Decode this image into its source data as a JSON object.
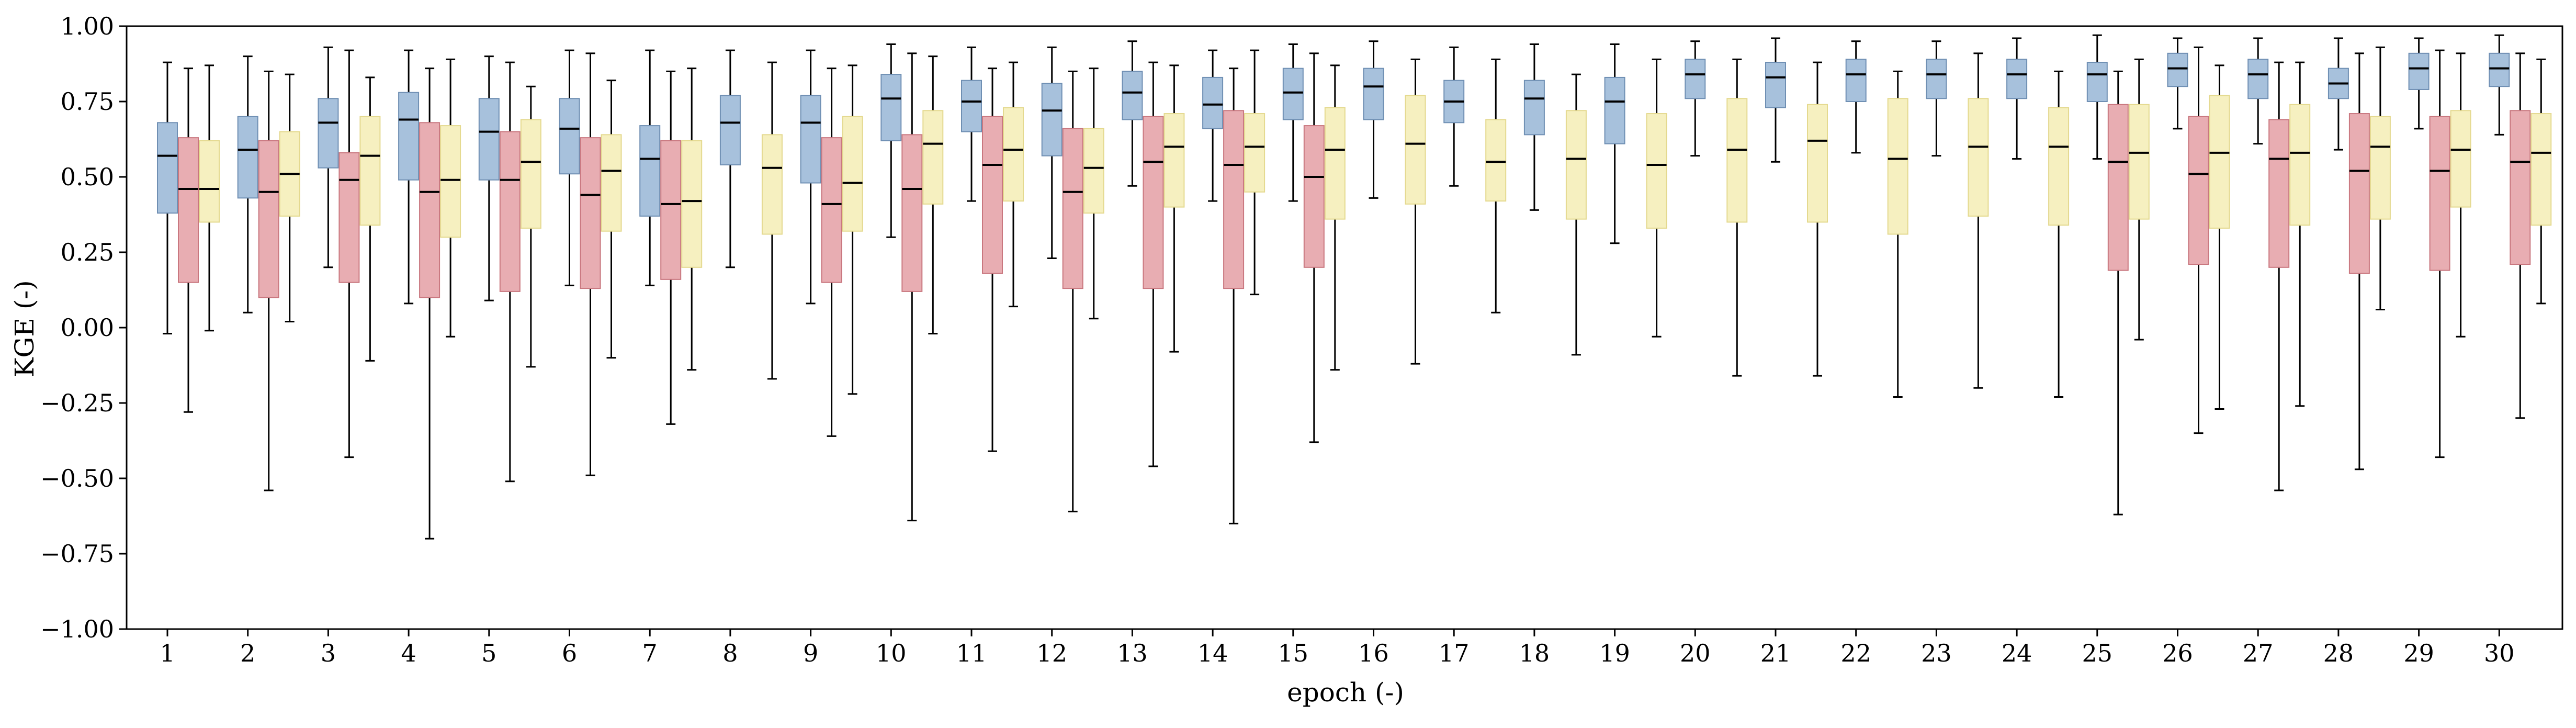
{
  "chart_data": {
    "type": "box",
    "xlabel": "epoch (-)",
    "ylabel": "KGE (-)",
    "ylim": [
      -1.0,
      1.0
    ],
    "yticks": [
      "−1.00",
      "−0.75",
      "−0.50",
      "−0.25",
      "0.00",
      "0.25",
      "0.50",
      "0.75",
      "1.00"
    ],
    "ytick_values": [
      -1.0,
      -0.75,
      -0.5,
      -0.25,
      0.0,
      0.25,
      0.5,
      0.75,
      1.0
    ],
    "categories": [
      "1",
      "2",
      "3",
      "4",
      "5",
      "6",
      "7",
      "8",
      "9",
      "10",
      "11",
      "12",
      "13",
      "14",
      "15",
      "16",
      "17",
      "18",
      "19",
      "20",
      "21",
      "22",
      "23",
      "24",
      "25",
      "26",
      "27",
      "28",
      "29",
      "30"
    ],
    "grid": false,
    "legend": "none",
    "series": [
      {
        "color": "#a7c1dc",
        "stroke": "#6f8fb3",
        "boxes": [
          {
            "epoch": "1",
            "whislo": -0.02,
            "q1": 0.38,
            "med": 0.57,
            "q3": 0.68,
            "whishi": 0.88
          },
          {
            "epoch": "2",
            "whislo": 0.05,
            "q1": 0.43,
            "med": 0.59,
            "q3": 0.7,
            "whishi": 0.9
          },
          {
            "epoch": "3",
            "whislo": 0.2,
            "q1": 0.53,
            "med": 0.68,
            "q3": 0.76,
            "whishi": 0.93
          },
          {
            "epoch": "4",
            "whislo": 0.08,
            "q1": 0.49,
            "med": 0.69,
            "q3": 0.78,
            "whishi": 0.92
          },
          {
            "epoch": "5",
            "whislo": 0.09,
            "q1": 0.49,
            "med": 0.65,
            "q3": 0.76,
            "whishi": 0.9
          },
          {
            "epoch": "6",
            "whislo": 0.14,
            "q1": 0.51,
            "med": 0.66,
            "q3": 0.76,
            "whishi": 0.92
          },
          {
            "epoch": "7",
            "whislo": 0.14,
            "q1": 0.37,
            "med": 0.56,
            "q3": 0.67,
            "whishi": 0.92
          },
          {
            "epoch": "8",
            "whislo": 0.2,
            "q1": 0.54,
            "med": 0.68,
            "q3": 0.77,
            "whishi": 0.92
          },
          {
            "epoch": "9",
            "whislo": 0.08,
            "q1": 0.48,
            "med": 0.68,
            "q3": 0.77,
            "whishi": 0.92
          },
          {
            "epoch": "10",
            "whislo": 0.3,
            "q1": 0.62,
            "med": 0.76,
            "q3": 0.84,
            "whishi": 0.94
          },
          {
            "epoch": "11",
            "whislo": 0.42,
            "q1": 0.65,
            "med": 0.75,
            "q3": 0.82,
            "whishi": 0.93
          },
          {
            "epoch": "12",
            "whislo": 0.23,
            "q1": 0.57,
            "med": 0.72,
            "q3": 0.81,
            "whishi": 0.93
          },
          {
            "epoch": "13",
            "whislo": 0.47,
            "q1": 0.69,
            "med": 0.78,
            "q3": 0.85,
            "whishi": 0.95
          },
          {
            "epoch": "14",
            "whislo": 0.42,
            "q1": 0.66,
            "med": 0.74,
            "q3": 0.83,
            "whishi": 0.92
          },
          {
            "epoch": "15",
            "whislo": 0.42,
            "q1": 0.69,
            "med": 0.78,
            "q3": 0.86,
            "whishi": 0.94
          },
          {
            "epoch": "16",
            "whislo": 0.43,
            "q1": 0.69,
            "med": 0.8,
            "q3": 0.86,
            "whishi": 0.95
          },
          {
            "epoch": "17",
            "whislo": 0.47,
            "q1": 0.68,
            "med": 0.75,
            "q3": 0.82,
            "whishi": 0.93
          },
          {
            "epoch": "18",
            "whislo": 0.39,
            "q1": 0.64,
            "med": 0.76,
            "q3": 0.82,
            "whishi": 0.94
          },
          {
            "epoch": "19",
            "whislo": 0.28,
            "q1": 0.61,
            "med": 0.75,
            "q3": 0.83,
            "whishi": 0.94
          },
          {
            "epoch": "20",
            "whislo": 0.57,
            "q1": 0.76,
            "med": 0.84,
            "q3": 0.89,
            "whishi": 0.95
          },
          {
            "epoch": "21",
            "whislo": 0.55,
            "q1": 0.73,
            "med": 0.83,
            "q3": 0.88,
            "whishi": 0.96
          },
          {
            "epoch": "22",
            "whislo": 0.58,
            "q1": 0.75,
            "med": 0.84,
            "q3": 0.89,
            "whishi": 0.95
          },
          {
            "epoch": "23",
            "whislo": 0.57,
            "q1": 0.76,
            "med": 0.84,
            "q3": 0.89,
            "whishi": 0.95
          },
          {
            "epoch": "24",
            "whislo": 0.56,
            "q1": 0.76,
            "med": 0.84,
            "q3": 0.89,
            "whishi": 0.96
          },
          {
            "epoch": "25",
            "whislo": 0.56,
            "q1": 0.75,
            "med": 0.84,
            "q3": 0.88,
            "whishi": 0.97
          },
          {
            "epoch": "26",
            "whislo": 0.66,
            "q1": 0.8,
            "med": 0.86,
            "q3": 0.91,
            "whishi": 0.96
          },
          {
            "epoch": "27",
            "whislo": 0.61,
            "q1": 0.76,
            "med": 0.84,
            "q3": 0.89,
            "whishi": 0.96
          },
          {
            "epoch": "28",
            "whislo": 0.59,
            "q1": 0.76,
            "med": 0.81,
            "q3": 0.86,
            "whishi": 0.96
          },
          {
            "epoch": "29",
            "whislo": 0.66,
            "q1": 0.79,
            "med": 0.86,
            "q3": 0.91,
            "whishi": 0.96
          },
          {
            "epoch": "30",
            "whislo": 0.64,
            "q1": 0.8,
            "med": 0.86,
            "q3": 0.91,
            "whishi": 0.97
          }
        ]
      },
      {
        "color": "#e8adb2",
        "stroke": "#c9777f",
        "boxes": [
          {
            "epoch": "1",
            "whislo": -0.28,
            "q1": 0.15,
            "med": 0.46,
            "q3": 0.63,
            "whishi": 0.86
          },
          {
            "epoch": "2",
            "whislo": -0.54,
            "q1": 0.1,
            "med": 0.45,
            "q3": 0.62,
            "whishi": 0.85
          },
          {
            "epoch": "3",
            "whislo": -0.43,
            "q1": 0.15,
            "med": 0.49,
            "q3": 0.58,
            "whishi": 0.92
          },
          {
            "epoch": "4",
            "whislo": -0.7,
            "q1": 0.1,
            "med": 0.45,
            "q3": 0.68,
            "whishi": 0.86
          },
          {
            "epoch": "5",
            "whislo": -0.51,
            "q1": 0.12,
            "med": 0.49,
            "q3": 0.65,
            "whishi": 0.88
          },
          {
            "epoch": "6",
            "whislo": -0.49,
            "q1": 0.13,
            "med": 0.44,
            "q3": 0.63,
            "whishi": 0.91
          },
          {
            "epoch": "7",
            "whislo": -0.32,
            "q1": 0.16,
            "med": 0.41,
            "q3": 0.62,
            "whishi": 0.85
          },
          {
            "epoch": "9",
            "whislo": -0.36,
            "q1": 0.15,
            "med": 0.41,
            "q3": 0.63,
            "whishi": 0.86
          },
          {
            "epoch": "10",
            "whislo": -0.64,
            "q1": 0.12,
            "med": 0.46,
            "q3": 0.64,
            "whishi": 0.91
          },
          {
            "epoch": "11",
            "whislo": -0.41,
            "q1": 0.18,
            "med": 0.54,
            "q3": 0.7,
            "whishi": 0.86
          },
          {
            "epoch": "12",
            "whislo": -0.61,
            "q1": 0.13,
            "med": 0.45,
            "q3": 0.66,
            "whishi": 0.85
          },
          {
            "epoch": "13",
            "whislo": -0.46,
            "q1": 0.13,
            "med": 0.55,
            "q3": 0.7,
            "whishi": 0.88
          },
          {
            "epoch": "14",
            "whislo": -0.65,
            "q1": 0.13,
            "med": 0.54,
            "q3": 0.72,
            "whishi": 0.86
          },
          {
            "epoch": "15",
            "whislo": -0.38,
            "q1": 0.2,
            "med": 0.5,
            "q3": 0.67,
            "whishi": 0.91
          },
          {
            "epoch": "25",
            "whislo": -0.62,
            "q1": 0.19,
            "med": 0.55,
            "q3": 0.74,
            "whishi": 0.85
          },
          {
            "epoch": "26",
            "whislo": -0.35,
            "q1": 0.21,
            "med": 0.51,
            "q3": 0.7,
            "whishi": 0.93
          },
          {
            "epoch": "27",
            "whislo": -0.54,
            "q1": 0.2,
            "med": 0.56,
            "q3": 0.69,
            "whishi": 0.88
          },
          {
            "epoch": "28",
            "whislo": -0.47,
            "q1": 0.18,
            "med": 0.52,
            "q3": 0.71,
            "whishi": 0.91
          },
          {
            "epoch": "29",
            "whislo": -0.43,
            "q1": 0.19,
            "med": 0.52,
            "q3": 0.7,
            "whishi": 0.92
          },
          {
            "epoch": "30",
            "whislo": -0.3,
            "q1": 0.21,
            "med": 0.55,
            "q3": 0.72,
            "whishi": 0.91
          }
        ]
      },
      {
        "color": "#f6f0c0",
        "stroke": "#e4d98f",
        "boxes": [
          {
            "epoch": "1",
            "whislo": -0.01,
            "q1": 0.35,
            "med": 0.46,
            "q3": 0.62,
            "whishi": 0.87
          },
          {
            "epoch": "2",
            "whislo": 0.02,
            "q1": 0.37,
            "med": 0.51,
            "q3": 0.65,
            "whishi": 0.84
          },
          {
            "epoch": "3",
            "whislo": -0.11,
            "q1": 0.34,
            "med": 0.57,
            "q3": 0.7,
            "whishi": 0.83
          },
          {
            "epoch": "4",
            "whislo": -0.03,
            "q1": 0.3,
            "med": 0.49,
            "q3": 0.67,
            "whishi": 0.89
          },
          {
            "epoch": "5",
            "whislo": -0.13,
            "q1": 0.33,
            "med": 0.55,
            "q3": 0.69,
            "whishi": 0.8
          },
          {
            "epoch": "6",
            "whislo": -0.1,
            "q1": 0.32,
            "med": 0.52,
            "q3": 0.64,
            "whishi": 0.82
          },
          {
            "epoch": "7",
            "whislo": -0.14,
            "q1": 0.2,
            "med": 0.42,
            "q3": 0.62,
            "whishi": 0.86
          },
          {
            "epoch": "8",
            "whislo": -0.17,
            "q1": 0.31,
            "med": 0.53,
            "q3": 0.64,
            "whishi": 0.88
          },
          {
            "epoch": "9",
            "whislo": -0.22,
            "q1": 0.32,
            "med": 0.48,
            "q3": 0.7,
            "whishi": 0.87
          },
          {
            "epoch": "10",
            "whislo": -0.02,
            "q1": 0.41,
            "med": 0.61,
            "q3": 0.72,
            "whishi": 0.9
          },
          {
            "epoch": "11",
            "whislo": 0.07,
            "q1": 0.42,
            "med": 0.59,
            "q3": 0.73,
            "whishi": 0.88
          },
          {
            "epoch": "12",
            "whislo": 0.03,
            "q1": 0.38,
            "med": 0.53,
            "q3": 0.66,
            "whishi": 0.86
          },
          {
            "epoch": "13",
            "whislo": -0.08,
            "q1": 0.4,
            "med": 0.6,
            "q3": 0.71,
            "whishi": 0.87
          },
          {
            "epoch": "14",
            "whislo": 0.11,
            "q1": 0.45,
            "med": 0.6,
            "q3": 0.71,
            "whishi": 0.92
          },
          {
            "epoch": "15",
            "whislo": -0.14,
            "q1": 0.36,
            "med": 0.59,
            "q3": 0.73,
            "whishi": 0.87
          },
          {
            "epoch": "16",
            "whislo": -0.12,
            "q1": 0.41,
            "med": 0.61,
            "q3": 0.77,
            "whishi": 0.89
          },
          {
            "epoch": "17",
            "whislo": 0.05,
            "q1": 0.42,
            "med": 0.55,
            "q3": 0.69,
            "whishi": 0.89
          },
          {
            "epoch": "18",
            "whislo": -0.09,
            "q1": 0.36,
            "med": 0.56,
            "q3": 0.72,
            "whishi": 0.84
          },
          {
            "epoch": "19",
            "whislo": -0.03,
            "q1": 0.33,
            "med": 0.54,
            "q3": 0.71,
            "whishi": 0.89
          },
          {
            "epoch": "20",
            "whislo": -0.16,
            "q1": 0.35,
            "med": 0.59,
            "q3": 0.76,
            "whishi": 0.89
          },
          {
            "epoch": "21",
            "whislo": -0.16,
            "q1": 0.35,
            "med": 0.62,
            "q3": 0.74,
            "whishi": 0.88
          },
          {
            "epoch": "22",
            "whislo": -0.23,
            "q1": 0.31,
            "med": 0.56,
            "q3": 0.76,
            "whishi": 0.85
          },
          {
            "epoch": "23",
            "whislo": -0.2,
            "q1": 0.37,
            "med": 0.6,
            "q3": 0.76,
            "whishi": 0.91
          },
          {
            "epoch": "24",
            "whislo": -0.23,
            "q1": 0.34,
            "med": 0.6,
            "q3": 0.73,
            "whishi": 0.85
          },
          {
            "epoch": "25",
            "whislo": -0.04,
            "q1": 0.36,
            "med": 0.58,
            "q3": 0.74,
            "whishi": 0.89
          },
          {
            "epoch": "26",
            "whislo": -0.27,
            "q1": 0.33,
            "med": 0.58,
            "q3": 0.77,
            "whishi": 0.87
          },
          {
            "epoch": "27",
            "whislo": -0.26,
            "q1": 0.34,
            "med": 0.58,
            "q3": 0.74,
            "whishi": 0.88
          },
          {
            "epoch": "28",
            "whislo": 0.06,
            "q1": 0.36,
            "med": 0.6,
            "q3": 0.7,
            "whishi": 0.93
          },
          {
            "epoch": "29",
            "whislo": -0.03,
            "q1": 0.4,
            "med": 0.59,
            "q3": 0.72,
            "whishi": 0.91
          },
          {
            "epoch": "30",
            "whislo": 0.08,
            "q1": 0.34,
            "med": 0.58,
            "q3": 0.71,
            "whishi": 0.89
          }
        ]
      }
    ]
  }
}
